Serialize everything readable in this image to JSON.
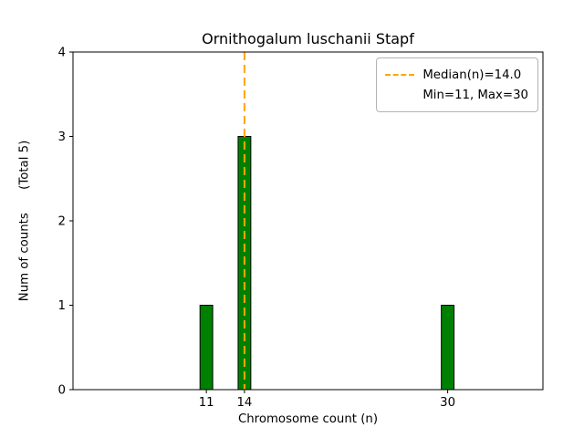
{
  "chart_data": {
    "type": "bar",
    "title": "Ornithogalum luschanii Stapf",
    "xlabel": "Chromosome count (n)",
    "ylabel": "Num of counts      (Total 5)",
    "categories": [
      11,
      14,
      30
    ],
    "values": [
      1,
      3,
      1
    ],
    "total_count": 5,
    "bar_color": "#008000",
    "bar_edge_color": "#000000",
    "bar_width": 1,
    "xlim": [
      0.5,
      37.5
    ],
    "ylim": [
      0,
      4
    ],
    "xticks": [
      11,
      14,
      30
    ],
    "yticks": [
      0,
      1,
      2,
      3,
      4
    ],
    "grid": false,
    "median_line": {
      "x": 14.0,
      "color": "#FFA500",
      "style": "dashed",
      "width": 2
    },
    "legend": {
      "position": "upper right",
      "entries": [
        {
          "label": "Median(n)=14.0",
          "handle": "dashed-line",
          "color": "#FFA500"
        },
        {
          "label": "Min=11, Max=30",
          "handle": "none",
          "color": ""
        }
      ]
    }
  }
}
